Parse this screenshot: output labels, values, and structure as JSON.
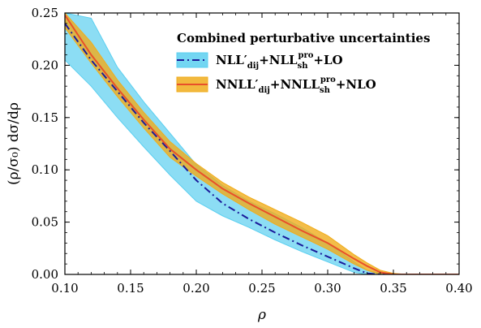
{
  "chart_data": {
    "type": "line",
    "xlabel": "ρ",
    "ylabel": "(ρ/σ₀) dσ/dρ",
    "xlim": [
      0.1,
      0.4
    ],
    "ylim": [
      0.0,
      0.25
    ],
    "x_ticks": [
      "0.10",
      "0.15",
      "0.20",
      "0.25",
      "0.30",
      "0.35",
      "0.40"
    ],
    "y_ticks": [
      "0.00",
      "0.05",
      "0.10",
      "0.15",
      "0.20",
      "0.25"
    ],
    "grid": false,
    "legend_placement": "top-right",
    "legend_title": "Combined perturbative uncertainties",
    "series": [
      {
        "name": "NLL′dij+NLLshpro+LO",
        "label_main": "NLL′",
        "label_sub": "dij",
        "label_mid": "+NLL",
        "label_sub2": "sh",
        "label_sup2": "pro",
        "label_end": "+LO",
        "color": "#1a1a9a",
        "band_color": "#5bcff0",
        "line_style": "dashdot",
        "x": [
          0.1,
          0.12,
          0.14,
          0.16,
          0.18,
          0.2,
          0.22,
          0.24,
          0.26,
          0.28,
          0.3,
          0.32,
          0.33,
          0.34,
          0.36,
          0.4
        ],
        "y": [
          0.24,
          0.205,
          0.175,
          0.145,
          0.118,
          0.09,
          0.068,
          0.053,
          0.04,
          0.028,
          0.017,
          0.006,
          0.001,
          0.0,
          0.0,
          0.0
        ],
        "y_lower": [
          0.205,
          0.18,
          0.15,
          0.122,
          0.095,
          0.07,
          0.056,
          0.045,
          0.033,
          0.022,
          0.012,
          0.002,
          0.0,
          0.0,
          0.0,
          0.0
        ],
        "y_upper": [
          0.25,
          0.245,
          0.198,
          0.165,
          0.135,
          0.105,
          0.085,
          0.07,
          0.058,
          0.045,
          0.03,
          0.012,
          0.004,
          0.001,
          0.0,
          0.0
        ]
      },
      {
        "name": "NNLL′dij+NNLLshpro+NLO",
        "label_main": "NNLL′",
        "label_sub": "dij",
        "label_mid": "+NNLL",
        "label_sub2": "sh",
        "label_sup2": "pro",
        "label_end": "+NLO",
        "color": "#e8502a",
        "band_color": "#f0ad1c",
        "line_style": "solid",
        "x": [
          0.1,
          0.12,
          0.14,
          0.16,
          0.18,
          0.2,
          0.22,
          0.24,
          0.26,
          0.28,
          0.3,
          0.32,
          0.33,
          0.34,
          0.35,
          0.36,
          0.4
        ],
        "y": [
          0.248,
          0.21,
          0.178,
          0.148,
          0.12,
          0.1,
          0.082,
          0.068,
          0.055,
          0.042,
          0.03,
          0.015,
          0.008,
          0.002,
          0.0,
          0.0,
          0.0
        ],
        "y_lower": [
          0.236,
          0.202,
          0.17,
          0.14,
          0.112,
          0.094,
          0.077,
          0.062,
          0.048,
          0.036,
          0.024,
          0.01,
          0.004,
          0.0,
          0.0,
          0.0,
          0.0
        ],
        "y_upper": [
          0.25,
          0.222,
          0.186,
          0.155,
          0.127,
          0.106,
          0.088,
          0.074,
          0.062,
          0.05,
          0.037,
          0.019,
          0.011,
          0.004,
          0.001,
          0.0,
          0.0
        ]
      }
    ]
  }
}
